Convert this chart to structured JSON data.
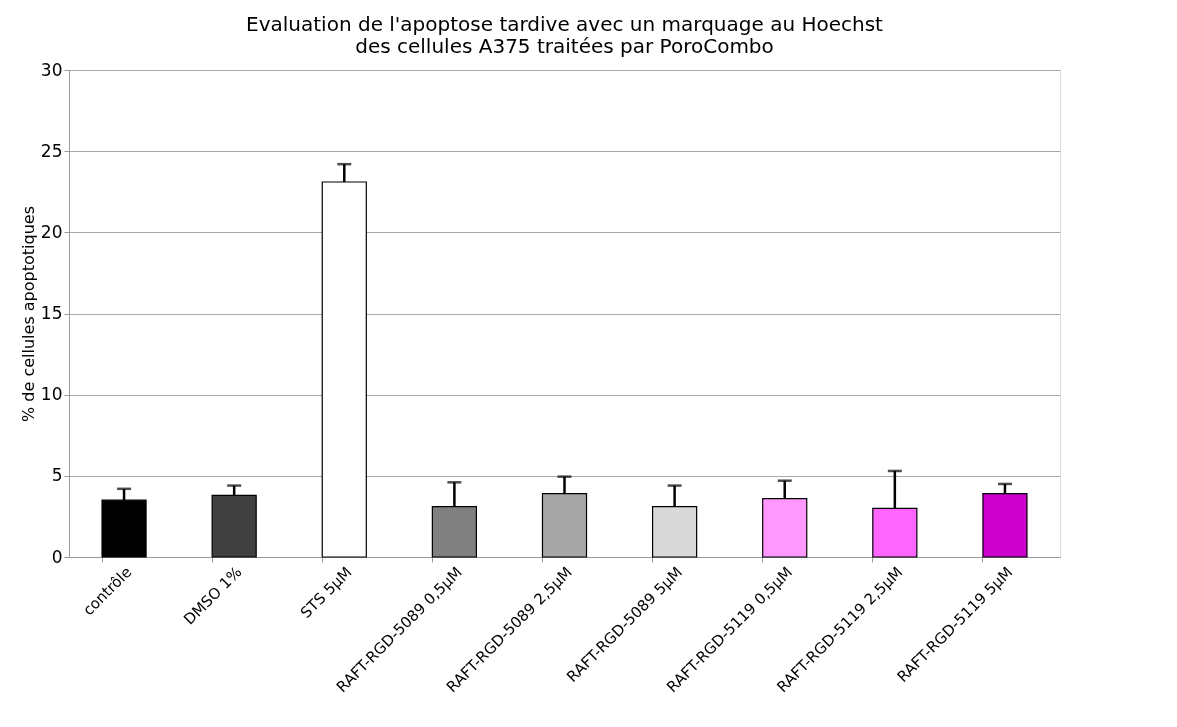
{
  "chart_data": {
    "type": "bar",
    "title": [
      "Evaluation de l'apoptose tardive avec un marquage au Hoechst",
      "des cellules A375 traitées par PoroCombo"
    ],
    "ylabel": "% de cellules apoptotiques",
    "categories": [
      "contrôle",
      "DMSO 1%",
      "STS 5µM",
      "RAFT-RGD-5089 0,5µM",
      "RAFT-RGD-5089 2,5µM",
      "RAFT-RGD-5089 5µM",
      "RAFT-RGD-5119 0,5µM",
      "RAFT-RGD-5119 2,5µM",
      "RAFT-RGD-5119 5µM"
    ],
    "values": [
      3.5,
      3.8,
      23.1,
      3.1,
      3.9,
      3.1,
      3.6,
      3.0,
      3.9
    ],
    "colors": [
      "#000000",
      "#404040",
      "#ffffff",
      "#808080",
      "#a6a6a6",
      "#d9d9d9",
      "#ff99ff",
      "#ff66ff",
      "#cc00cc"
    ],
    "errors": [
      [
        3.5,
        4.2
      ],
      [
        3.8,
        4.4
      ],
      [
        23.1,
        24.2
      ],
      [
        3.1,
        4.6
      ],
      [
        3.9,
        4.95
      ],
      [
        3.1,
        4.4
      ],
      [
        3.6,
        4.7
      ],
      [
        3.0,
        5.3
      ],
      [
        3.9,
        4.5
      ]
    ],
    "ylim": [
      0,
      30
    ],
    "yticks": [
      0,
      5,
      10,
      15,
      20,
      25,
      30
    ],
    "grid": "y"
  }
}
